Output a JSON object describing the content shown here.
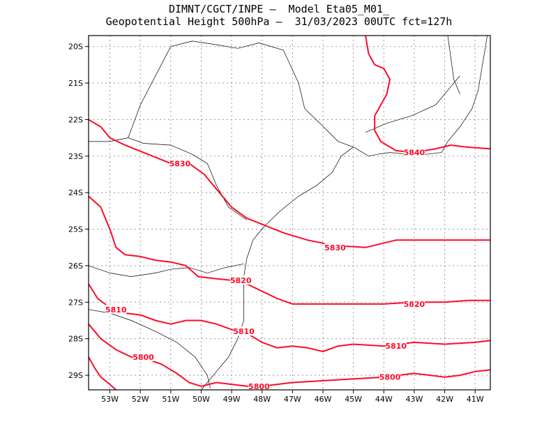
{
  "title": {
    "line1": "DIMNT/CGCT/INPE –  Model Eta05_M01_",
    "line2": "Geopotential Height 500hPa –  31/03/2023 00UTC fct=127h"
  },
  "colors": {
    "contour": "#ff0a28",
    "coast": "#000000",
    "grid": "#9a9a9a",
    "frame": "#000000"
  },
  "map": {
    "lon_range": [
      -53.7,
      -40.5
    ],
    "lat_range": [
      -29.4,
      -19.7
    ],
    "lon_ticks": [
      {
        "value": -53,
        "label": "53W"
      },
      {
        "value": -52,
        "label": "52W"
      },
      {
        "value": -51,
        "label": "51W"
      },
      {
        "value": -50,
        "label": "50W"
      },
      {
        "value": -49,
        "label": "49W"
      },
      {
        "value": -48,
        "label": "48W"
      },
      {
        "value": -47,
        "label": "47W"
      },
      {
        "value": -46,
        "label": "46W"
      },
      {
        "value": -45,
        "label": "45W"
      },
      {
        "value": -44,
        "label": "44W"
      },
      {
        "value": -43,
        "label": "43W"
      },
      {
        "value": -42,
        "label": "42W"
      },
      {
        "value": -41,
        "label": "41W"
      }
    ],
    "lat_ticks": [
      {
        "value": -20,
        "label": "20S"
      },
      {
        "value": -21,
        "label": "21S"
      },
      {
        "value": -22,
        "label": "22S"
      },
      {
        "value": -23,
        "label": "23S"
      },
      {
        "value": -24,
        "label": "24S"
      },
      {
        "value": -25,
        "label": "25S"
      },
      {
        "value": -26,
        "label": "26S"
      },
      {
        "value": -27,
        "label": "27S"
      },
      {
        "value": -28,
        "label": "28S"
      },
      {
        "value": -29,
        "label": "29S"
      }
    ],
    "contours": [
      {
        "value": 5840,
        "label": "5840",
        "label_at": [
          -43.0,
          -22.9
        ],
        "points": [
          [
            -44.6,
            -19.7
          ],
          [
            -44.5,
            -20.2
          ],
          [
            -44.3,
            -20.5
          ],
          [
            -44.0,
            -20.6
          ],
          [
            -43.8,
            -20.9
          ],
          [
            -43.9,
            -21.3
          ],
          [
            -44.1,
            -21.6
          ],
          [
            -44.3,
            -21.9
          ],
          [
            -44.3,
            -22.3
          ],
          [
            -44.1,
            -22.6
          ],
          [
            -43.6,
            -22.85
          ],
          [
            -43.0,
            -22.9
          ],
          [
            -42.3,
            -22.8
          ],
          [
            -41.8,
            -22.7
          ],
          [
            -41.3,
            -22.75
          ],
          [
            -40.5,
            -22.8
          ]
        ]
      },
      {
        "value": 5830,
        "label": "5830",
        "label_at": [
          -50.7,
          -23.2
        ],
        "points": [
          [
            -53.7,
            -22.0
          ],
          [
            -53.3,
            -22.2
          ],
          [
            -53.0,
            -22.5
          ],
          [
            -52.5,
            -22.7
          ],
          [
            -51.6,
            -23.0
          ],
          [
            -51.0,
            -23.2
          ],
          [
            -50.4,
            -23.2
          ],
          [
            -49.9,
            -23.5
          ],
          [
            -49.4,
            -24.0
          ],
          [
            -49.0,
            -24.4
          ],
          [
            -48.5,
            -24.7
          ],
          [
            -47.9,
            -24.9
          ],
          [
            -47.3,
            -25.1
          ],
          [
            -46.5,
            -25.3
          ],
          [
            -45.6,
            -25.45
          ],
          [
            -44.6,
            -25.5
          ],
          [
            -43.6,
            -25.3
          ],
          [
            -42.5,
            -25.3
          ],
          [
            -41.5,
            -25.3
          ],
          [
            -40.5,
            -25.3
          ]
        ]
      },
      {
        "value": 5820,
        "label": "5820",
        "label_at": [
          -48.7,
          -26.4
        ],
        "points": [
          [
            -53.7,
            -24.1
          ],
          [
            -53.3,
            -24.4
          ],
          [
            -53.0,
            -25.0
          ],
          [
            -52.8,
            -25.5
          ],
          [
            -52.5,
            -25.7
          ],
          [
            -52.0,
            -25.75
          ],
          [
            -51.5,
            -25.85
          ],
          [
            -51.0,
            -25.9
          ],
          [
            -50.5,
            -26.0
          ],
          [
            -50.1,
            -26.3
          ],
          [
            -49.6,
            -26.35
          ],
          [
            -49.0,
            -26.4
          ],
          [
            -48.5,
            -26.5
          ],
          [
            -48.0,
            -26.7
          ],
          [
            -47.5,
            -26.9
          ],
          [
            -47.0,
            -27.05
          ],
          [
            -46.0,
            -27.05
          ],
          [
            -45.0,
            -27.05
          ],
          [
            -44.0,
            -27.05
          ],
          [
            -43.0,
            -27.0
          ],
          [
            -42.0,
            -27.0
          ],
          [
            -41.2,
            -26.95
          ],
          [
            -40.5,
            -26.95
          ]
        ]
      },
      {
        "value": 5810,
        "label": "5810",
        "label_at": [
          -48.6,
          -27.8
        ],
        "points": [
          [
            -53.7,
            -26.5
          ],
          [
            -53.4,
            -26.9
          ],
          [
            -53.0,
            -27.15
          ],
          [
            -52.5,
            -27.3
          ],
          [
            -52.0,
            -27.35
          ],
          [
            -51.5,
            -27.5
          ],
          [
            -51.0,
            -27.6
          ],
          [
            -50.5,
            -27.5
          ],
          [
            -50.0,
            -27.5
          ],
          [
            -49.5,
            -27.6
          ],
          [
            -49.0,
            -27.75
          ],
          [
            -48.5,
            -27.85
          ],
          [
            -48.0,
            -28.1
          ],
          [
            -47.5,
            -28.25
          ],
          [
            -47.0,
            -28.2
          ],
          [
            -46.5,
            -28.25
          ],
          [
            -46.0,
            -28.35
          ],
          [
            -45.5,
            -28.2
          ],
          [
            -45.0,
            -28.15
          ],
          [
            -44.0,
            -28.2
          ],
          [
            -43.0,
            -28.1
          ],
          [
            -42.0,
            -28.15
          ],
          [
            -41.0,
            -28.1
          ],
          [
            -40.5,
            -28.05
          ]
        ]
      },
      {
        "value": 5800,
        "label": "5800",
        "label_at": [
          -51.9,
          -28.5
        ],
        "points": [
          [
            -53.7,
            -27.6
          ],
          [
            -53.3,
            -28.0
          ],
          [
            -52.8,
            -28.3
          ],
          [
            -52.3,
            -28.5
          ],
          [
            -51.8,
            -28.55
          ],
          [
            -51.3,
            -28.7
          ],
          [
            -50.8,
            -28.95
          ],
          [
            -50.4,
            -29.2
          ],
          [
            -50.0,
            -29.3
          ],
          [
            -49.5,
            -29.2
          ],
          [
            -49.0,
            -29.25
          ],
          [
            -48.5,
            -29.3
          ],
          [
            -48.0,
            -29.3
          ],
          [
            -47.5,
            -29.25
          ],
          [
            -47.0,
            -29.2
          ],
          [
            -46.0,
            -29.15
          ],
          [
            -45.0,
            -29.1
          ],
          [
            -44.0,
            -29.05
          ],
          [
            -43.0,
            -28.95
          ],
          [
            -42.0,
            -29.05
          ],
          [
            -41.5,
            -29.0
          ],
          [
            -41.0,
            -28.9
          ],
          [
            -40.5,
            -28.85
          ]
        ]
      },
      {
        "value": 5800,
        "label": "5800",
        "label_at": [
          -48.1,
          -29.3
        ],
        "points": [
          [
            -53.7,
            -28.5
          ],
          [
            -53.5,
            -28.8
          ],
          [
            -53.3,
            -29.05
          ],
          [
            -53.0,
            -29.25
          ],
          [
            -52.8,
            -29.4
          ]
        ]
      },
      {
        "value": 5810,
        "label": "5810",
        "label_at": [
          -52.8,
          -27.2
        ],
        "points": []
      },
      {
        "value": 5830,
        "label": "5830",
        "label_at": [
          -45.6,
          -25.5
        ],
        "points": []
      },
      {
        "value": 5820,
        "label": "5820",
        "label_at": [
          -43.0,
          -27.05
        ],
        "points": []
      },
      {
        "value": 5810,
        "label": "5810",
        "label_at": [
          -43.6,
          -28.2
        ],
        "points": []
      },
      {
        "value": 5800,
        "label": "5800",
        "label_at": [
          -43.8,
          -29.05
        ],
        "points": []
      }
    ],
    "borders": [
      {
        "name": "coastline",
        "points": [
          [
            -45.0,
            -22.75
          ],
          [
            -45.4,
            -23.0
          ],
          [
            -45.7,
            -23.45
          ],
          [
            -46.2,
            -23.8
          ],
          [
            -46.8,
            -24.1
          ],
          [
            -47.4,
            -24.5
          ],
          [
            -47.9,
            -24.9
          ],
          [
            -48.3,
            -25.3
          ],
          [
            -48.5,
            -25.8
          ],
          [
            -48.6,
            -26.3
          ],
          [
            -48.6,
            -26.9
          ],
          [
            -48.6,
            -27.5
          ],
          [
            -48.8,
            -28.0
          ],
          [
            -49.1,
            -28.5
          ],
          [
            -49.5,
            -28.9
          ],
          [
            -49.8,
            -29.2
          ],
          [
            -50.0,
            -29.4
          ]
        ]
      },
      {
        "name": "coastline-rj-es",
        "points": [
          [
            -45.0,
            -22.75
          ],
          [
            -44.5,
            -23.0
          ],
          [
            -44.2,
            -22.95
          ],
          [
            -43.8,
            -22.9
          ],
          [
            -43.2,
            -22.95
          ],
          [
            -42.6,
            -22.95
          ],
          [
            -42.1,
            -22.9
          ],
          [
            -41.9,
            -22.6
          ],
          [
            -41.5,
            -22.2
          ],
          [
            -41.1,
            -21.7
          ],
          [
            -40.9,
            -21.2
          ],
          [
            -40.8,
            -20.7
          ],
          [
            -40.7,
            -20.2
          ],
          [
            -40.6,
            -19.7
          ]
        ]
      },
      {
        "name": "parana-river",
        "points": [
          [
            -52.4,
            -22.5
          ],
          [
            -53.0,
            -22.6
          ],
          [
            -53.7,
            -22.6
          ]
        ]
      },
      {
        "name": "sp-pr-border",
        "points": [
          [
            -52.4,
            -22.5
          ],
          [
            -51.9,
            -22.65
          ],
          [
            -51.0,
            -22.7
          ],
          [
            -50.3,
            -22.95
          ],
          [
            -49.8,
            -23.2
          ],
          [
            -49.5,
            -23.8
          ],
          [
            -49.1,
            -24.4
          ],
          [
            -48.5,
            -24.75
          ]
        ]
      },
      {
        "name": "sp-mg-border",
        "points": [
          [
            -51.0,
            -20.0
          ],
          [
            -50.3,
            -19.85
          ],
          [
            -49.5,
            -19.95
          ],
          [
            -48.8,
            -20.05
          ],
          [
            -48.1,
            -19.9
          ],
          [
            -47.3,
            -20.1
          ],
          [
            -46.8,
            -21.0
          ],
          [
            -46.6,
            -21.7
          ],
          [
            -46.1,
            -22.1
          ],
          [
            -45.5,
            -22.6
          ],
          [
            -45.0,
            -22.75
          ]
        ]
      },
      {
        "name": "mg-rj-border",
        "points": [
          [
            -44.6,
            -22.35
          ],
          [
            -43.9,
            -22.1
          ],
          [
            -43.1,
            -21.9
          ],
          [
            -42.3,
            -21.6
          ],
          [
            -41.8,
            -21.1
          ],
          [
            -41.5,
            -20.8
          ]
        ]
      },
      {
        "name": "sp-ms-border",
        "points": [
          [
            -52.4,
            -22.5
          ],
          [
            -52.0,
            -21.6
          ],
          [
            -51.0,
            -20.0
          ]
        ]
      },
      {
        "name": "pr-sc-border",
        "points": [
          [
            -53.7,
            -26.0
          ],
          [
            -53.0,
            -26.2
          ],
          [
            -52.3,
            -26.3
          ],
          [
            -51.5,
            -26.2
          ],
          [
            -51.0,
            -26.1
          ],
          [
            -50.4,
            -26.05
          ],
          [
            -49.8,
            -26.2
          ],
          [
            -49.2,
            -26.05
          ],
          [
            -48.6,
            -25.95
          ]
        ]
      },
      {
        "name": "sc-rs-border",
        "points": [
          [
            -53.7,
            -27.2
          ],
          [
            -53.0,
            -27.3
          ],
          [
            -52.3,
            -27.5
          ],
          [
            -51.5,
            -27.8
          ],
          [
            -50.8,
            -28.1
          ],
          [
            -50.2,
            -28.5
          ],
          [
            -49.8,
            -29.0
          ],
          [
            -49.7,
            -29.35
          ]
        ]
      },
      {
        "name": "mg-es-border",
        "points": [
          [
            -41.9,
            -19.7
          ],
          [
            -41.8,
            -20.3
          ],
          [
            -41.7,
            -20.9
          ],
          [
            -41.5,
            -21.3
          ]
        ]
      }
    ]
  }
}
